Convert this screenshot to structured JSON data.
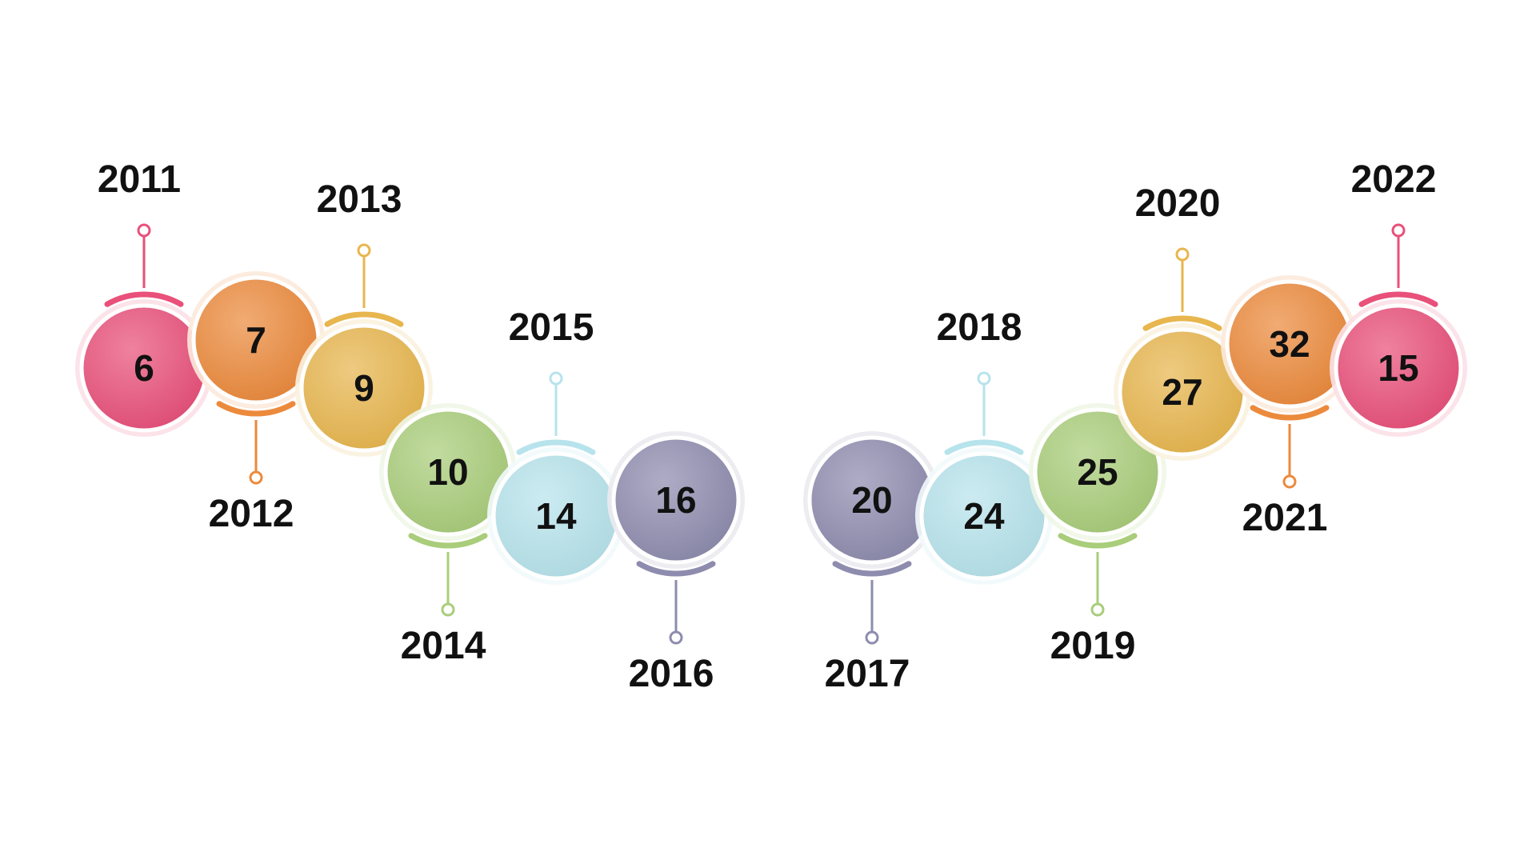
{
  "timeline": {
    "items": [
      {
        "year": "2011",
        "value": "6",
        "color": "#e9507a",
        "side": "top"
      },
      {
        "year": "2012",
        "value": "7",
        "color": "#ec8a3c",
        "side": "bottom"
      },
      {
        "year": "2013",
        "value": "9",
        "color": "#e8b64e",
        "side": "top"
      },
      {
        "year": "2014",
        "value": "10",
        "color": "#a9cd7a",
        "side": "bottom"
      },
      {
        "year": "2015",
        "value": "14",
        "color": "#b7e3ec",
        "side": "top"
      },
      {
        "year": "2016",
        "value": "16",
        "color": "#8e8cae",
        "side": "bottom"
      },
      {
        "year": "2017",
        "value": "20",
        "color": "#8e8cae",
        "side": "bottom"
      },
      {
        "year": "2018",
        "value": "24",
        "color": "#b7e3ec",
        "side": "top"
      },
      {
        "year": "2019",
        "value": "25",
        "color": "#a9cd7a",
        "side": "bottom"
      },
      {
        "year": "2020",
        "value": "27",
        "color": "#e8b64e",
        "side": "top"
      },
      {
        "year": "2021",
        "value": "32",
        "color": "#ec8a3c",
        "side": "bottom"
      },
      {
        "year": "2022",
        "value": "15",
        "color": "#e9507a",
        "side": "top"
      }
    ]
  }
}
